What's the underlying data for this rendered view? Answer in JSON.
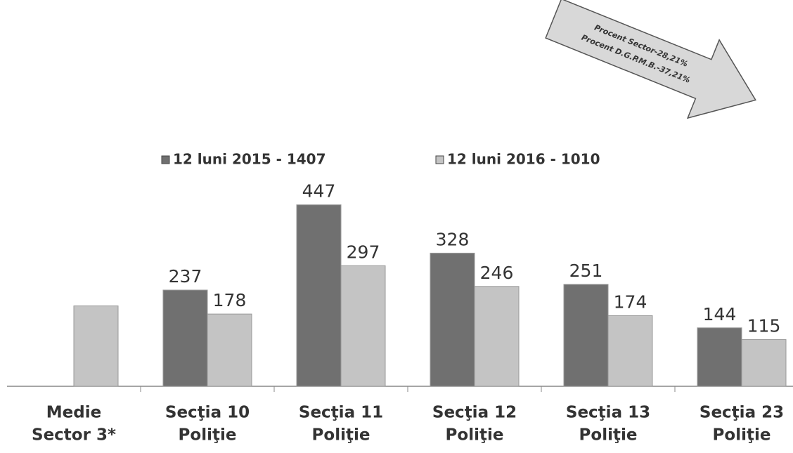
{
  "chart_data": {
    "type": "bar",
    "categories": [
      [
        "Medie",
        "Sector 3*"
      ],
      [
        "Secţia 10",
        "Poliţie"
      ],
      [
        "Secţia 11",
        "Poliţie"
      ],
      [
        "Secţia 12",
        "Poliţie"
      ],
      [
        "Secţia 13",
        "Poliţie"
      ],
      [
        "Secţia 23",
        "Poliţie"
      ]
    ],
    "series": [
      {
        "name": "12 luni 2015 - 1407",
        "color": "#707070",
        "values": [
          null,
          237,
          447,
          328,
          251,
          144
        ]
      },
      {
        "name": "12 luni 2016 - 1010",
        "color": "#c4c4c4",
        "values": [
          198,
          178,
          297,
          246,
          174,
          115
        ],
        "value_labels": [
          null,
          "178",
          "297",
          "246",
          "174",
          "115"
        ]
      }
    ],
    "ylim": [
      0,
      500
    ],
    "annotations": [
      "Procent Sector-28,21%",
      "Procent D.G.P.M.B.-37,21%"
    ]
  }
}
